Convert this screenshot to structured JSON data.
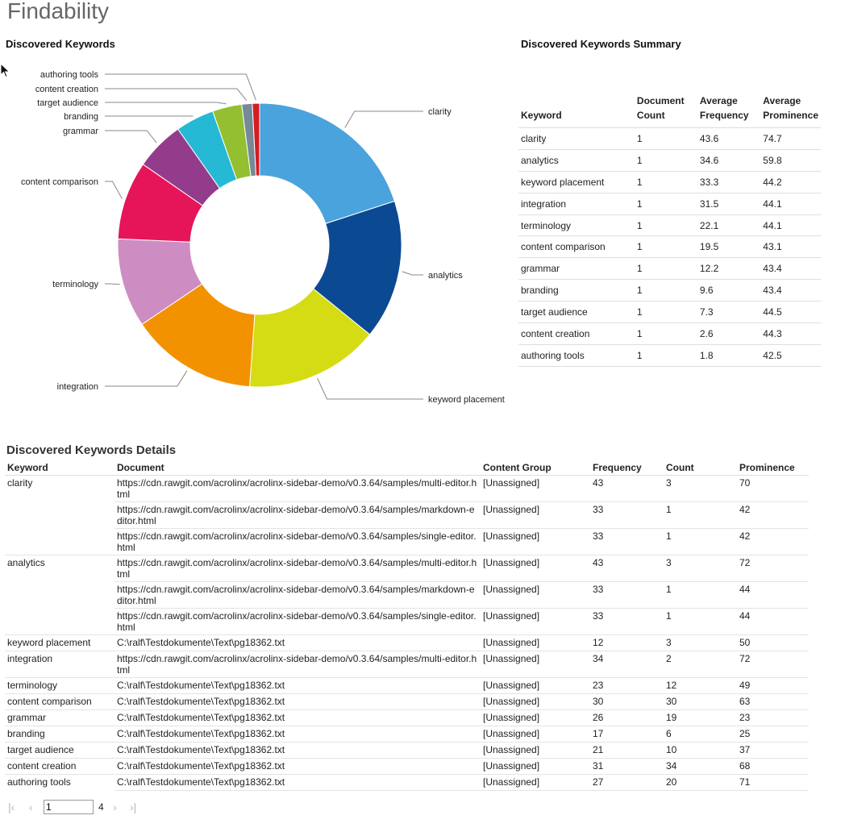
{
  "page": {
    "title": "Findability"
  },
  "chart_section": {
    "heading": "Discovered Keywords"
  },
  "chart_data": {
    "type": "pie",
    "donut": true,
    "title": "",
    "categories": [
      "clarity",
      "analytics",
      "keyword placement",
      "integration",
      "terminology",
      "content comparison",
      "grammar",
      "branding",
      "target audience",
      "content creation",
      "authoring tools"
    ],
    "values": [
      43.6,
      34.6,
      33.3,
      31.5,
      22.1,
      19.5,
      12.2,
      9.6,
      7.3,
      2.6,
      1.8
    ],
    "colors": [
      "#4aa3dc",
      "#0b4a92",
      "#d5dc13",
      "#f39200",
      "#cd8dc2",
      "#e6155a",
      "#943c8c",
      "#25b9d6",
      "#93bf30",
      "#758a96",
      "#d21e24"
    ]
  },
  "summary": {
    "heading": "Discovered Keywords Summary",
    "headers": {
      "keyword": "Keyword",
      "doc_count_1": "Document",
      "doc_count_2": "Count",
      "avg_freq_1": "Average",
      "avg_freq_2": "Frequency",
      "avg_prom_1": "Average",
      "avg_prom_2": "Prominence"
    },
    "rows": [
      {
        "keyword": "clarity",
        "doc_count": "1",
        "avg_freq": "43.6",
        "avg_prom": "74.7"
      },
      {
        "keyword": "analytics",
        "doc_count": "1",
        "avg_freq": "34.6",
        "avg_prom": "59.8"
      },
      {
        "keyword": "keyword placement",
        "doc_count": "1",
        "avg_freq": "33.3",
        "avg_prom": "44.2"
      },
      {
        "keyword": "integration",
        "doc_count": "1",
        "avg_freq": "31.5",
        "avg_prom": "44.1"
      },
      {
        "keyword": "terminology",
        "doc_count": "1",
        "avg_freq": "22.1",
        "avg_prom": "44.1"
      },
      {
        "keyword": "content comparison",
        "doc_count": "1",
        "avg_freq": "19.5",
        "avg_prom": "43.1"
      },
      {
        "keyword": "grammar",
        "doc_count": "1",
        "avg_freq": "12.2",
        "avg_prom": "43.4"
      },
      {
        "keyword": "branding",
        "doc_count": "1",
        "avg_freq": "9.6",
        "avg_prom": "43.4"
      },
      {
        "keyword": "target audience",
        "doc_count": "1",
        "avg_freq": "7.3",
        "avg_prom": "44.5"
      },
      {
        "keyword": "content creation",
        "doc_count": "1",
        "avg_freq": "2.6",
        "avg_prom": "44.3"
      },
      {
        "keyword": "authoring tools",
        "doc_count": "1",
        "avg_freq": "1.8",
        "avg_prom": "42.5"
      }
    ]
  },
  "details": {
    "heading": "Discovered Keywords Details",
    "headers": {
      "keyword": "Keyword",
      "document": "Document",
      "content_group": "Content Group",
      "frequency": "Frequency",
      "count": "Count",
      "prominence": "Prominence"
    },
    "rows": [
      {
        "keyword": "clarity",
        "document": "https://cdn.rawgit.com/acrolinx/acrolinx-sidebar-demo/v0.3.64/samples/multi-editor.html",
        "content_group": "[Unassigned]",
        "frequency": "43",
        "count": "3",
        "prominence": "70",
        "rowspan": 3
      },
      {
        "keyword": "",
        "document": "https://cdn.rawgit.com/acrolinx/acrolinx-sidebar-demo/v0.3.64/samples/markdown-editor.html",
        "content_group": "[Unassigned]",
        "frequency": "33",
        "count": "1",
        "prominence": "42"
      },
      {
        "keyword": "",
        "document": "https://cdn.rawgit.com/acrolinx/acrolinx-sidebar-demo/v0.3.64/samples/single-editor.html",
        "content_group": "[Unassigned]",
        "frequency": "33",
        "count": "1",
        "prominence": "42"
      },
      {
        "keyword": "analytics",
        "document": "https://cdn.rawgit.com/acrolinx/acrolinx-sidebar-demo/v0.3.64/samples/multi-editor.html",
        "content_group": "[Unassigned]",
        "frequency": "43",
        "count": "3",
        "prominence": "72",
        "rowspan": 3
      },
      {
        "keyword": "",
        "document": "https://cdn.rawgit.com/acrolinx/acrolinx-sidebar-demo/v0.3.64/samples/markdown-editor.html",
        "content_group": "[Unassigned]",
        "frequency": "33",
        "count": "1",
        "prominence": "44"
      },
      {
        "keyword": "",
        "document": "https://cdn.rawgit.com/acrolinx/acrolinx-sidebar-demo/v0.3.64/samples/single-editor.html",
        "content_group": "[Unassigned]",
        "frequency": "33",
        "count": "1",
        "prominence": "44"
      },
      {
        "keyword": "keyword placement",
        "document": "C:\\ralf\\Testdokumente\\Text\\pg18362.txt",
        "content_group": "[Unassigned]",
        "frequency": "12",
        "count": "3",
        "prominence": "50",
        "rowspan": 1
      },
      {
        "keyword": "integration",
        "document": "https://cdn.rawgit.com/acrolinx/acrolinx-sidebar-demo/v0.3.64/samples/multi-editor.html",
        "content_group": "[Unassigned]",
        "frequency": "34",
        "count": "2",
        "prominence": "72",
        "rowspan": 1
      },
      {
        "keyword": "terminology",
        "document": "C:\\ralf\\Testdokumente\\Text\\pg18362.txt",
        "content_group": "[Unassigned]",
        "frequency": "23",
        "count": "12",
        "prominence": "49",
        "rowspan": 1
      },
      {
        "keyword": "content comparison",
        "document": "C:\\ralf\\Testdokumente\\Text\\pg18362.txt",
        "content_group": "[Unassigned]",
        "frequency": "30",
        "count": "30",
        "prominence": "63",
        "rowspan": 1
      },
      {
        "keyword": "grammar",
        "document": "C:\\ralf\\Testdokumente\\Text\\pg18362.txt",
        "content_group": "[Unassigned]",
        "frequency": "26",
        "count": "19",
        "prominence": "23",
        "rowspan": 1
      },
      {
        "keyword": "branding",
        "document": "C:\\ralf\\Testdokumente\\Text\\pg18362.txt",
        "content_group": "[Unassigned]",
        "frequency": "17",
        "count": "6",
        "prominence": "25",
        "rowspan": 1
      },
      {
        "keyword": "target audience",
        "document": "C:\\ralf\\Testdokumente\\Text\\pg18362.txt",
        "content_group": "[Unassigned]",
        "frequency": "21",
        "count": "10",
        "prominence": "37",
        "rowspan": 1
      },
      {
        "keyword": "content creation",
        "document": "C:\\ralf\\Testdokumente\\Text\\pg18362.txt",
        "content_group": "[Unassigned]",
        "frequency": "31",
        "count": "34",
        "prominence": "68",
        "rowspan": 1
      },
      {
        "keyword": "authoring tools",
        "document": "C:\\ralf\\Testdokumente\\Text\\pg18362.txt",
        "content_group": "[Unassigned]",
        "frequency": "27",
        "count": "20",
        "prominence": "71",
        "rowspan": 1
      }
    ]
  },
  "pager": {
    "first_icon": "first-page-icon",
    "prev_icon": "prev-page-icon",
    "next_icon": "next-page-icon",
    "last_icon": "last-page-icon",
    "current_page": "1",
    "total_pages": "4"
  },
  "cursor": {
    "icon": "mouse-pointer-icon"
  }
}
